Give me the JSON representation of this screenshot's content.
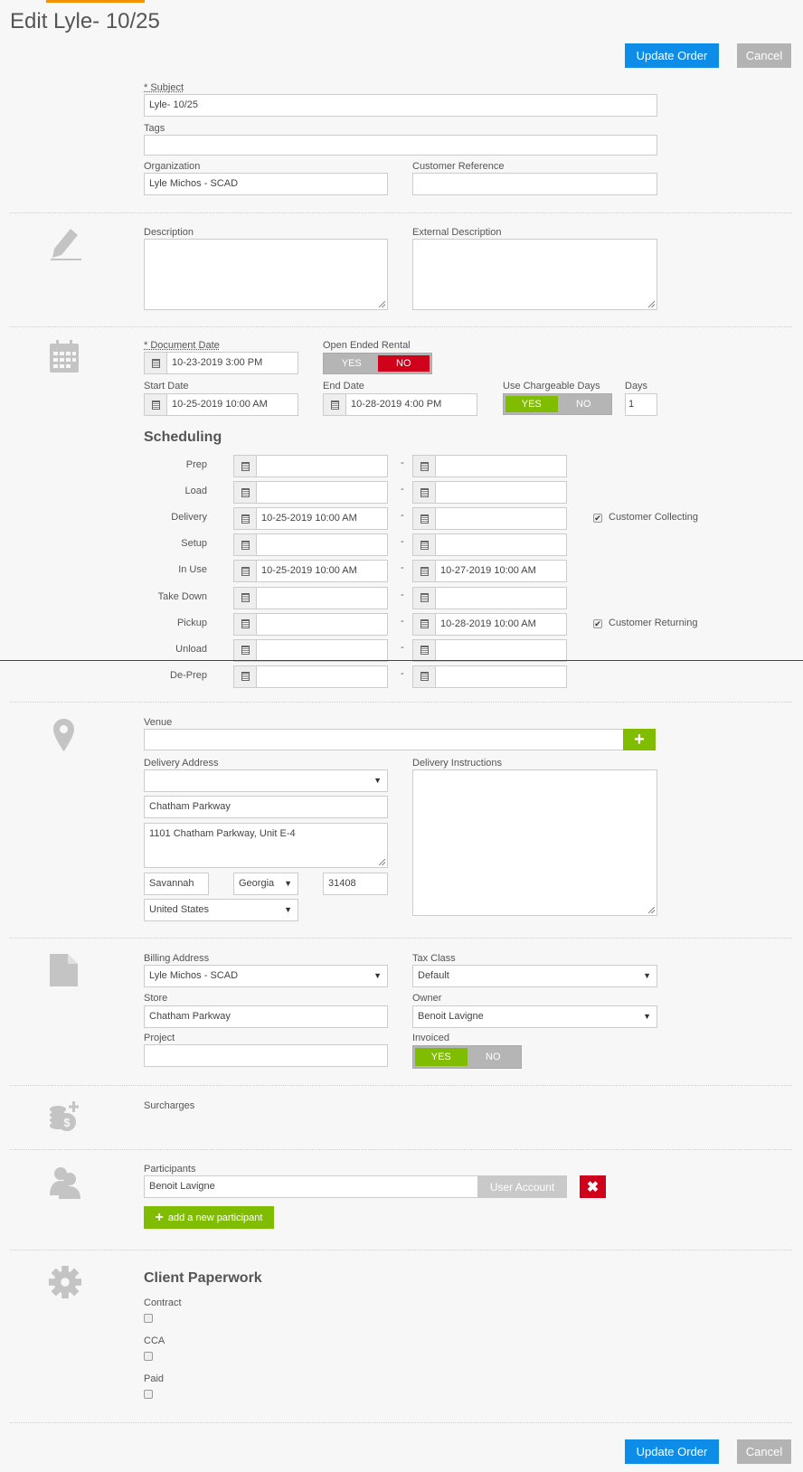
{
  "header": {
    "title": "Edit Lyle- 10/25",
    "update_label": "Update Order",
    "cancel_label": "Cancel"
  },
  "general": {
    "subject_label": "* Subject",
    "subject_value": "Lyle- 10/25",
    "tags_label": "Tags",
    "tags_value": "",
    "organization_label": "Organization",
    "organization_value": "Lyle Michos - SCAD",
    "customer_reference_label": "Customer Reference",
    "customer_reference_value": ""
  },
  "description": {
    "description_label": "Description",
    "external_description_label": "External Description"
  },
  "dates": {
    "document_date_label": "* Document Date",
    "document_date_value": "10-23-2019  3:00 PM",
    "open_ended_label": "Open Ended Rental",
    "open_ended_yes": "YES",
    "open_ended_no": "NO",
    "open_ended_selected": "NO",
    "start_date_label": "Start Date",
    "start_date_value": "10-25-2019 10:00 AM",
    "end_date_label": "End Date",
    "end_date_value": "10-28-2019  4:00 PM",
    "chargeable_label": "Use Chargeable Days",
    "chargeable_yes": "YES",
    "chargeable_no": "NO",
    "chargeable_selected": "YES",
    "days_label": "Days",
    "days_value": "1"
  },
  "scheduling": {
    "title": "Scheduling",
    "separator": "-",
    "rows": [
      {
        "label": "Prep",
        "from": "",
        "to": "",
        "checkbox": null
      },
      {
        "label": "Load",
        "from": "",
        "to": "",
        "checkbox": null
      },
      {
        "label": "Delivery",
        "from": "10-25-2019 10:00 AM",
        "to": "",
        "checkbox": {
          "label": "Customer Collecting",
          "checked": true
        }
      },
      {
        "label": "Setup",
        "from": "",
        "to": "",
        "checkbox": null
      },
      {
        "label": "In Use",
        "from": "10-25-2019 10:00 AM",
        "to": "10-27-2019 10:00 AM",
        "checkbox": null
      },
      {
        "label": "Take Down",
        "from": "",
        "to": "",
        "checkbox": null
      },
      {
        "label": "Pickup",
        "from": "",
        "to": "10-28-2019 10:00 AM",
        "checkbox": {
          "label": "Customer Returning",
          "checked": true
        }
      },
      {
        "label": "Unload",
        "from": "",
        "to": "",
        "checkbox": null
      },
      {
        "label": "De-Prep",
        "from": "",
        "to": "",
        "checkbox": null
      }
    ]
  },
  "delivery": {
    "venue_label": "Venue",
    "venue_value": "",
    "delivery_address_label": "Delivery Address",
    "delivery_address_value": "",
    "address_name": "Chatham Parkway",
    "address_street": "1101 Chatham Parkway, Unit E-4",
    "city": "Savannah",
    "state": "Georgia",
    "zip": "31408",
    "country": "United States",
    "instructions_label": "Delivery Instructions"
  },
  "billing": {
    "billing_address_label": "Billing Address",
    "billing_address_value": "Lyle Michos - SCAD",
    "tax_class_label": "Tax Class",
    "tax_class_value": "Default",
    "store_label": "Store",
    "store_value": "Chatham Parkway",
    "owner_label": "Owner",
    "owner_value": "Benoit Lavigne",
    "project_label": "Project",
    "project_value": "",
    "invoiced_label": "Invoiced",
    "invoiced_yes": "YES",
    "invoiced_no": "NO",
    "invoiced_selected": "YES"
  },
  "surcharges": {
    "label": "Surcharges"
  },
  "participants": {
    "label": "Participants",
    "items": [
      {
        "name": "Benoit Lavigne",
        "type": "User Account"
      }
    ],
    "add_label": "add a new participant"
  },
  "paperwork": {
    "title": "Client Paperwork",
    "items": [
      {
        "label": "Contract",
        "checked": false
      },
      {
        "label": "CCA",
        "checked": false
      },
      {
        "label": "Paid",
        "checked": false
      }
    ]
  },
  "colors": {
    "primary": "#0d8de8",
    "accent": "#80bd00",
    "danger": "#d0021b",
    "tab": "#f39200"
  }
}
